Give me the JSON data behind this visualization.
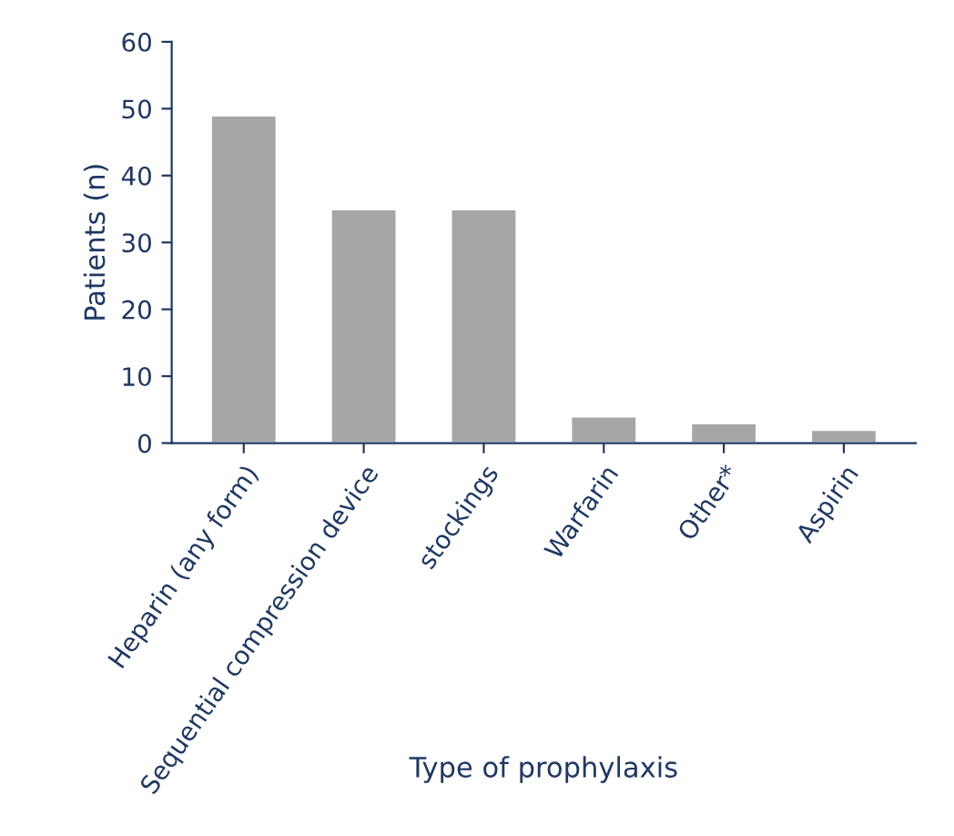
{
  "chart_data": {
    "type": "bar",
    "xlabel": "Type of prophylaxis",
    "ylabel": "Patients (n)",
    "categories": [
      "Heparin (any form)",
      "Sequential compression device",
      "stockings",
      "Warfarin",
      "Other*",
      "Aspirin"
    ],
    "values": [
      49,
      35,
      35,
      4,
      3,
      2
    ],
    "color": "#a6a6a6",
    "ylim": [
      0,
      60
    ],
    "yticks": [
      0,
      10,
      20,
      30,
      40,
      50,
      60
    ],
    "grid": false,
    "legend": false
  }
}
